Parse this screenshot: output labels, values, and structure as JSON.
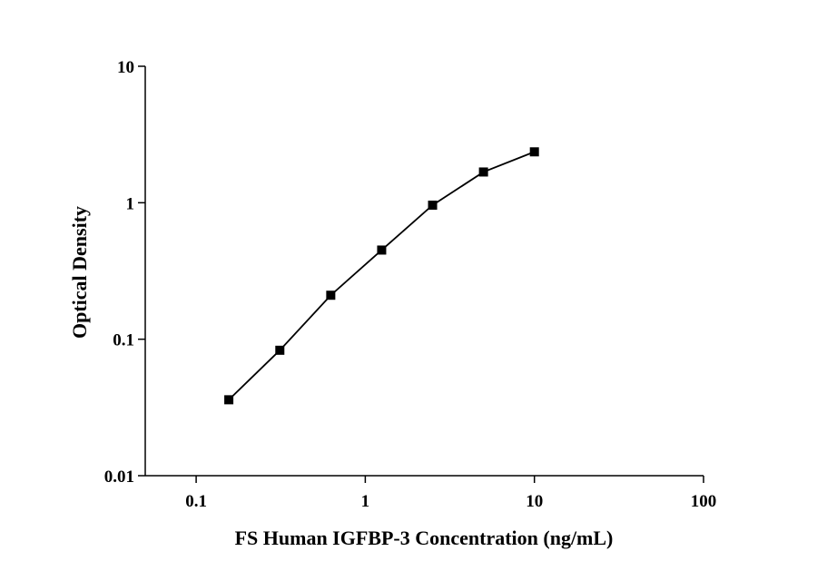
{
  "chart_data": {
    "type": "line",
    "x_label": "FS Human IGFBP-3 Concentration (ng/mL)",
    "y_label": "Optical Density",
    "x": [
      0.156,
      0.3125,
      0.625,
      1.25,
      2.5,
      5,
      10
    ],
    "values": [
      0.036,
      0.083,
      0.21,
      0.45,
      0.96,
      1.68,
      2.36
    ],
    "color": "#000000",
    "marker": "square",
    "xscale": "log",
    "yscale": "log",
    "xlim": [
      0.05,
      100
    ],
    "ylim": [
      0.01,
      10
    ],
    "xticks": [
      0.1,
      1,
      10,
      100
    ],
    "yticks": [
      0.01,
      0.1,
      1,
      10
    ],
    "grid": false
  }
}
